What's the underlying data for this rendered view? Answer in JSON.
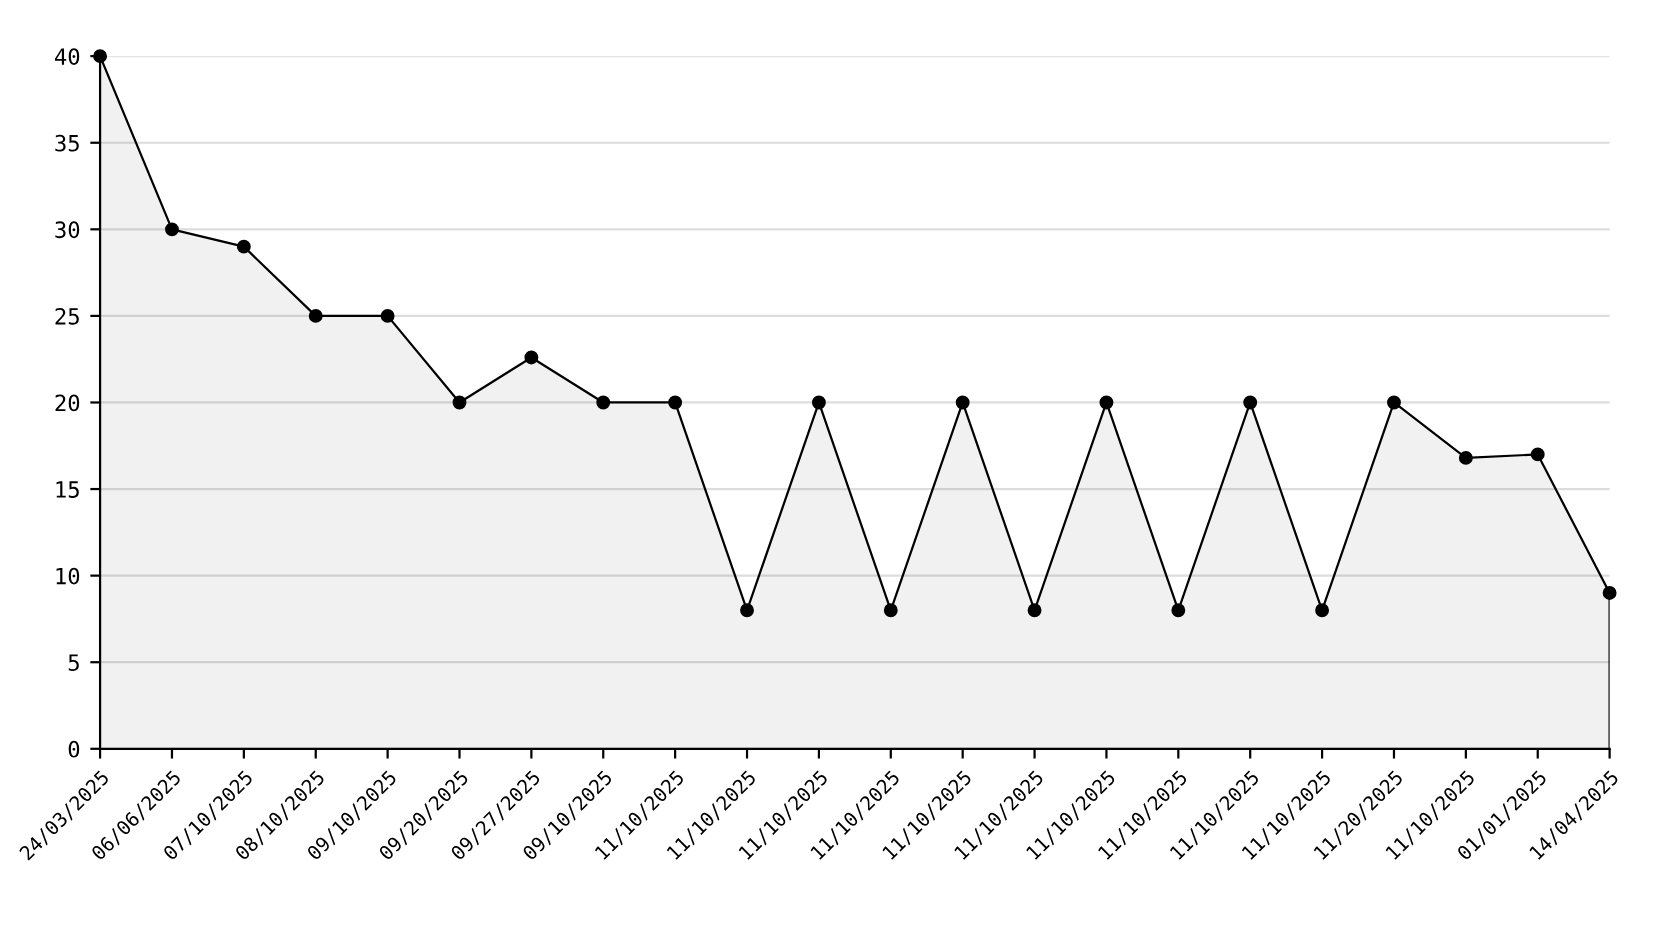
{
  "chart_data": {
    "type": "area",
    "categories": [
      "24/03/2025",
      "06/06/2025",
      "07/10/2025",
      "08/10/2025",
      "09/10/2025",
      "09/20/2025",
      "09/27/2025",
      "09/10/2025",
      "11/10/2025",
      "11/10/2025",
      "11/10/2025",
      "11/10/2025",
      "11/10/2025",
      "11/10/2025",
      "11/10/2025",
      "11/10/2025",
      "11/10/2025",
      "11/10/2025",
      "11/20/2025",
      "11/10/2025",
      "01/01/2025",
      "14/04/2025"
    ],
    "series": [
      {
        "color": "#000000",
        "values": [
          40,
          30,
          29,
          25,
          25,
          20,
          22.6,
          20,
          20,
          8,
          20,
          8,
          20,
          8,
          20,
          8,
          20,
          8,
          20,
          16.8,
          17,
          9
        ]
      }
    ],
    "ylim": [
      0,
      40
    ],
    "yticks": [
      0,
      5,
      10,
      15,
      20,
      25,
      30,
      35,
      40
    ],
    "grid": "y",
    "marker": "circle",
    "line_style": "solid",
    "legend": false
  }
}
